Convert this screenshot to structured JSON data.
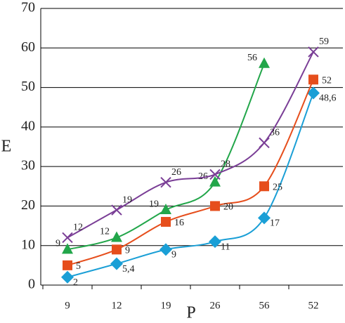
{
  "chart_data": {
    "type": "line",
    "x_label": "P",
    "y_label": "E",
    "categories": [
      "9",
      "12",
      "19",
      "26",
      "56",
      "52"
    ],
    "series": [
      {
        "name": "diamond",
        "marker": "diamond",
        "color": "#1a9fd6",
        "values": [
          2,
          5.4,
          9,
          11,
          17,
          48.6
        ],
        "value_labels": [
          "2",
          "5,4",
          "9",
          "11",
          "17",
          "48,6"
        ]
      },
      {
        "name": "square",
        "marker": "square",
        "color": "#e64e1c",
        "values": [
          5,
          9,
          16,
          20,
          25,
          52
        ]
      },
      {
        "name": "triangle",
        "marker": "triangle",
        "color": "#22a64a",
        "values": [
          9,
          12,
          19,
          26,
          56,
          null
        ]
      },
      {
        "name": "cross",
        "marker": "cross",
        "color": "#7a3e96",
        "values": [
          12,
          19,
          26,
          28,
          36,
          59
        ]
      }
    ],
    "ylim": [
      0,
      70
    ],
    "yticks": [
      0,
      10,
      20,
      30,
      40,
      50,
      60,
      70
    ],
    "grid": true
  }
}
